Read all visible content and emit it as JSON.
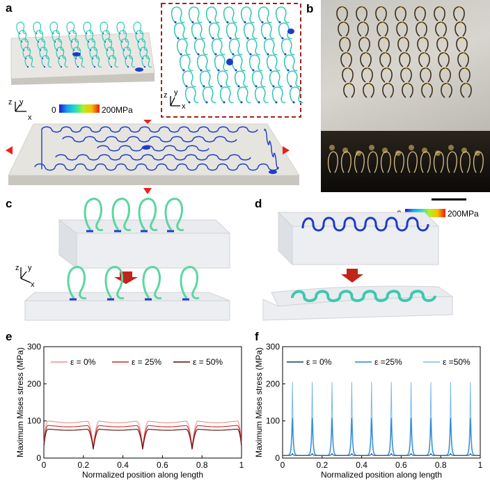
{
  "panel_labels": {
    "a": "a",
    "b": "b",
    "c": "c",
    "d": "d",
    "e": "e",
    "f": "f"
  },
  "colorbar": {
    "min": "0",
    "max": "200MPa"
  },
  "axes_triad": {
    "x": "x",
    "y": "y",
    "z": "z"
  },
  "colors": {
    "coil": "#2ec7b4",
    "substrate": "#e6e4df",
    "serpentine": "#1e3cc8",
    "arrow_red": "#e8221a",
    "dark_arrow": "#c0241b",
    "dashed_box": "#a1221f",
    "photo_bg": "#cfcfcb",
    "photo_dark": "#1a1712"
  },
  "chart_data": [
    {
      "type": "line",
      "panel": "e",
      "xlabel": "Normalized position along length",
      "ylabel": "Maximum Mises stress (MPa)",
      "xlim": [
        0,
        1
      ],
      "ylim": [
        0,
        300
      ],
      "xticks": [
        "0",
        "0.2",
        "0.4",
        "0.6",
        "0.8",
        "1"
      ],
      "yticks": [
        "0",
        "100",
        "200",
        "300"
      ],
      "legend_position": "top",
      "series": [
        {
          "name": "ε = 0%",
          "color": "#f28b8b",
          "base": 100,
          "dip": 80
        },
        {
          "name": "ε = 25%",
          "color": "#cc2a2a",
          "base": 88,
          "dip": 72
        },
        {
          "name": "ε = 50%",
          "color": "#5a0a0a",
          "base": 78,
          "dip": 65
        }
      ],
      "dip_positions": [
        0.25,
        0.5,
        0.75
      ]
    },
    {
      "type": "line",
      "panel": "f",
      "xlabel": "Normalized position along length",
      "ylabel": "Maximum Mises stress (MPa)",
      "xlim": [
        0,
        1
      ],
      "ylim": [
        0,
        300
      ],
      "xticks": [
        "0",
        "0.2",
        "0.4",
        "0.6",
        "0.8",
        "1"
      ],
      "yticks": [
        "0",
        "100",
        "200",
        "300"
      ],
      "legend_position": "top",
      "series": [
        {
          "name": "ε = 0%",
          "color": "#0b3a78",
          "peak": 12
        },
        {
          "name": "ε =25%",
          "color": "#2383d0",
          "peak": 108
        },
        {
          "name": "ε =50%",
          "color": "#7ab8ea",
          "peak": 205
        }
      ],
      "peak_positions": [
        0.05,
        0.15,
        0.25,
        0.35,
        0.45,
        0.55,
        0.65,
        0.75,
        0.85,
        0.95
      ],
      "baseline": 7
    }
  ]
}
